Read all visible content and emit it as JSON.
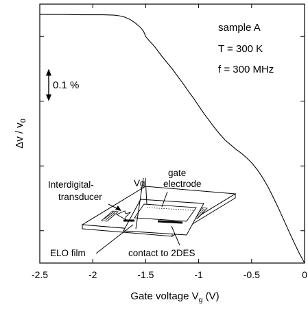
{
  "chart_data": {
    "type": "line",
    "xlabel_main": "Gate voltage V",
    "xlabel_sub": "g",
    "xlabel_unit": " (V)",
    "ylabel_main": "Δv / v",
    "ylabel_sub": "0",
    "xlim": [
      -2.5,
      0
    ],
    "x_ticks": [
      -2.5,
      -2,
      -1.5,
      -1,
      -0.5,
      0
    ],
    "x_tick_labels": [
      "-2.5",
      "-2",
      "-1.5",
      "-1",
      "-0.5",
      "0"
    ],
    "ylim": [
      0,
      0.8
    ],
    "y_ticks": [
      0.1,
      0.3,
      0.5,
      0.7
    ],
    "grid": false,
    "series": [
      {
        "x": [
          -2.5,
          -2.3,
          -2.1,
          -1.9,
          -1.8,
          -1.75,
          -1.7,
          -1.65,
          -1.6,
          -1.55,
          -1.52,
          -1.5,
          -1.47,
          -1.43,
          -1.4,
          -1.35,
          -1.3,
          -1.25,
          -1.2,
          -1.15,
          -1.1,
          -1.05,
          -1.0,
          -0.95,
          -0.9,
          -0.85,
          -0.8,
          -0.75,
          -0.7,
          -0.65,
          -0.6,
          -0.55,
          -0.5,
          -0.45,
          -0.4,
          -0.35,
          -0.3,
          -0.25,
          -0.2,
          -0.15,
          -0.1,
          -0.05,
          0.0
        ],
        "y": [
          0.768,
          0.768,
          0.767,
          0.767,
          0.766,
          0.764,
          0.76,
          0.753,
          0.742,
          0.728,
          0.716,
          0.7,
          0.688,
          0.674,
          0.662,
          0.64,
          0.62,
          0.6,
          0.578,
          0.556,
          0.532,
          0.51,
          0.486,
          0.462,
          0.44,
          0.418,
          0.398,
          0.38,
          0.366,
          0.352,
          0.34,
          0.326,
          0.31,
          0.29,
          0.266,
          0.238,
          0.206,
          0.172,
          0.136,
          0.1,
          0.064,
          0.03,
          0.0
        ]
      }
    ],
    "scale_bar": {
      "label": "0.1 %",
      "value": 0.1,
      "from": 0.6
    },
    "annotations": {
      "sample": "sample A",
      "temperature": "T = 300 K",
      "frequency": "f = 300 MHz"
    }
  },
  "inset": {
    "vg": "Vg",
    "gate_line1": "gate",
    "gate_line2": "electrode",
    "idt_line1": "Interdigital-",
    "idt_line2": "transducer",
    "elo": "ELO film",
    "contact": "contact to 2DES"
  }
}
